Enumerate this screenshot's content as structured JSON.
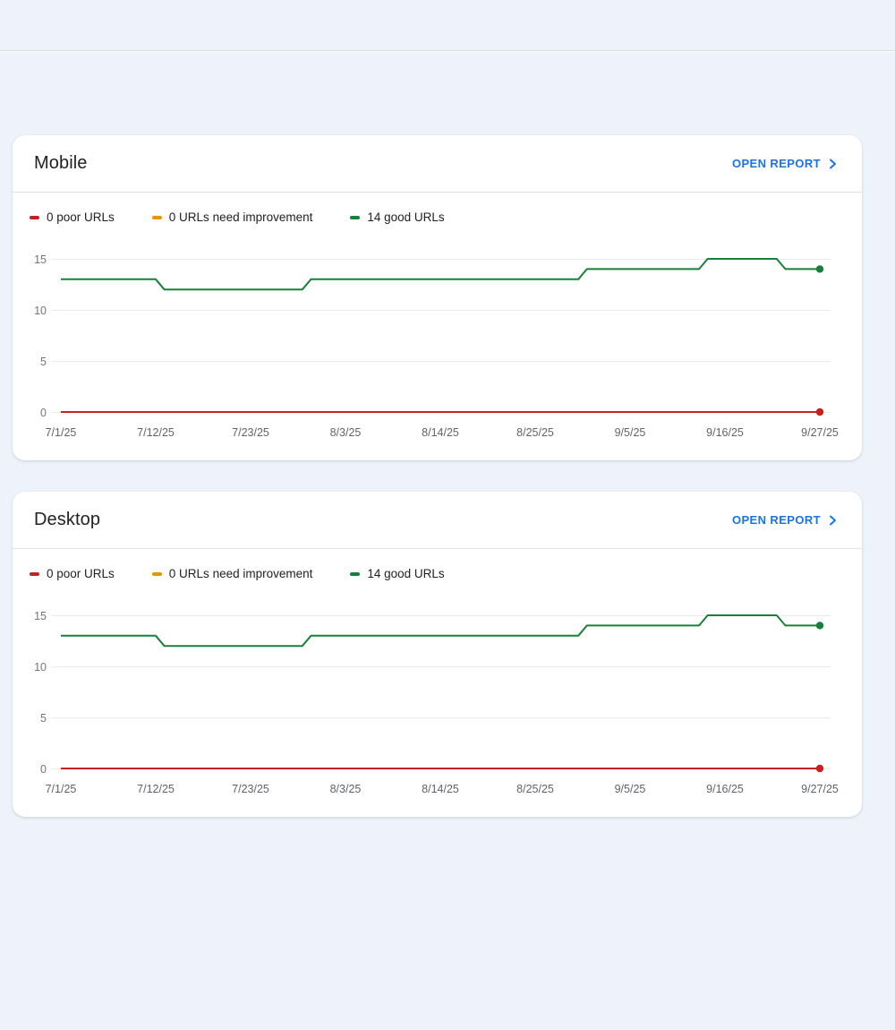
{
  "colors": {
    "accent_link": "#1a73e8",
    "poor": "#c5221f",
    "needs_improvement": "#e8930c",
    "good": "#188038",
    "grid": "#e9ebee",
    "axis_text": "#757575",
    "background": "#eef3fb"
  },
  "cards": [
    {
      "id": "mobile",
      "title": "Mobile",
      "open_report_label": "OPEN REPORT",
      "legend": [
        {
          "label": "0 poor URLs",
          "color": "#c5221f"
        },
        {
          "label": "0 URLs need improvement",
          "color": "#e8930c"
        },
        {
          "label": "14 good URLs",
          "color": "#188038"
        }
      ],
      "chart_data": {
        "type": "line",
        "xlabel": "",
        "ylabel": "",
        "ylim": [
          0,
          15
        ],
        "y_ticks": [
          0,
          5,
          10,
          15
        ],
        "x_tick_labels": [
          "7/1/25",
          "7/12/25",
          "7/23/25",
          "8/3/25",
          "8/14/25",
          "8/25/25",
          "9/5/25",
          "9/16/25",
          "9/27/25"
        ],
        "grid": true,
        "series": [
          {
            "name": "poor URLs",
            "color": "#c5221f",
            "end_dot": false,
            "points": [
              [
                "7/1/25",
                0
              ],
              [
                "9/27/25",
                0
              ]
            ]
          },
          {
            "name": "URLs need improvement",
            "color": "#e8930c",
            "end_dot": false,
            "points": [
              [
                "7/1/25",
                0
              ],
              [
                "9/27/25",
                0
              ]
            ]
          },
          {
            "name": "good URLs",
            "color": "#188038",
            "end_dot": true,
            "points": [
              [
                "7/1/25",
                13
              ],
              [
                "7/12/25",
                13
              ],
              [
                "7/13/25",
                12
              ],
              [
                "7/29/25",
                12
              ],
              [
                "7/30/25",
                13
              ],
              [
                "8/30/25",
                13
              ],
              [
                "8/31/25",
                14
              ],
              [
                "9/13/25",
                14
              ],
              [
                "9/14/25",
                15
              ],
              [
                "9/22/25",
                15
              ],
              [
                "9/23/25",
                14
              ],
              [
                "9/27/25",
                14
              ]
            ]
          },
          {
            "name": "poor URLs overlay",
            "color": "#c5221f",
            "end_dot": true,
            "points": [
              [
                "7/1/25",
                0
              ],
              [
                "9/27/25",
                0
              ]
            ]
          }
        ]
      }
    },
    {
      "id": "desktop",
      "title": "Desktop",
      "open_report_label": "OPEN REPORT",
      "legend": [
        {
          "label": "0 poor URLs",
          "color": "#c5221f"
        },
        {
          "label": "0 URLs need improvement",
          "color": "#e8930c"
        },
        {
          "label": "14 good URLs",
          "color": "#188038"
        }
      ],
      "chart_data": {
        "type": "line",
        "xlabel": "",
        "ylabel": "",
        "ylim": [
          0,
          15
        ],
        "y_ticks": [
          0,
          5,
          10,
          15
        ],
        "x_tick_labels": [
          "7/1/25",
          "7/12/25",
          "7/23/25",
          "8/3/25",
          "8/14/25",
          "8/25/25",
          "9/5/25",
          "9/16/25",
          "9/27/25"
        ],
        "grid": true,
        "series": [
          {
            "name": "poor URLs",
            "color": "#c5221f",
            "end_dot": false,
            "points": [
              [
                "7/1/25",
                0
              ],
              [
                "9/27/25",
                0
              ]
            ]
          },
          {
            "name": "URLs need improvement",
            "color": "#e8930c",
            "end_dot": false,
            "points": [
              [
                "7/1/25",
                0
              ],
              [
                "9/27/25",
                0
              ]
            ]
          },
          {
            "name": "good URLs",
            "color": "#188038",
            "end_dot": true,
            "points": [
              [
                "7/1/25",
                13
              ],
              [
                "7/12/25",
                13
              ],
              [
                "7/13/25",
                12
              ],
              [
                "7/29/25",
                12
              ],
              [
                "7/30/25",
                13
              ],
              [
                "8/30/25",
                13
              ],
              [
                "8/31/25",
                14
              ],
              [
                "9/13/25",
                14
              ],
              [
                "9/14/25",
                15
              ],
              [
                "9/22/25",
                15
              ],
              [
                "9/23/25",
                14
              ],
              [
                "9/27/25",
                14
              ]
            ]
          },
          {
            "name": "poor URLs overlay",
            "color": "#c5221f",
            "end_dot": true,
            "points": [
              [
                "7/1/25",
                0
              ],
              [
                "9/27/25",
                0
              ]
            ]
          }
        ]
      }
    }
  ]
}
